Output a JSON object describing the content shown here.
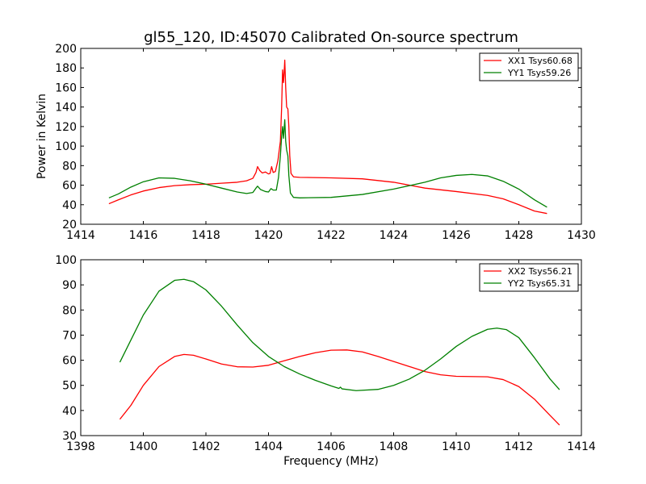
{
  "chart_data": [
    {
      "type": "line",
      "title": "gl55_120, ID:45070 Calibrated On-source spectrum",
      "xlabel": "",
      "ylabel": "Power in Kelvin",
      "xlim": [
        1414,
        1430
      ],
      "ylim": [
        20,
        200
      ],
      "xticks": [
        1414,
        1416,
        1418,
        1420,
        1422,
        1424,
        1426,
        1428,
        1430
      ],
      "yticks": [
        20,
        40,
        60,
        80,
        100,
        120,
        140,
        160,
        180,
        200
      ],
      "legend": "top-right",
      "grid": false,
      "series": [
        {
          "name": "XX1 Tsys60.68",
          "color": "#ff0000",
          "points": [
            [
              1414.9,
              41.0
            ],
            [
              1415.2,
              45.0
            ],
            [
              1415.6,
              50.0
            ],
            [
              1416.0,
              54.0
            ],
            [
              1416.5,
              57.5
            ],
            [
              1417.0,
              59.5
            ],
            [
              1417.5,
              60.5
            ],
            [
              1418.0,
              61.0
            ],
            [
              1418.5,
              62.0
            ],
            [
              1419.0,
              63.0
            ],
            [
              1419.3,
              64.5
            ],
            [
              1419.5,
              67.0
            ],
            [
              1419.6,
              73.0
            ],
            [
              1419.65,
              79.0
            ],
            [
              1419.72,
              75.0
            ],
            [
              1419.8,
              72.5
            ],
            [
              1419.9,
              73.5
            ],
            [
              1420.0,
              71.5
            ],
            [
              1420.05,
              72.0
            ],
            [
              1420.1,
              79.0
            ],
            [
              1420.15,
              73.0
            ],
            [
              1420.22,
              74.0
            ],
            [
              1420.3,
              85.0
            ],
            [
              1420.38,
              105.0
            ],
            [
              1420.42,
              140.0
            ],
            [
              1420.45,
              178.0
            ],
            [
              1420.48,
              165.0
            ],
            [
              1420.5,
              175.0
            ],
            [
              1420.52,
              188.0
            ],
            [
              1420.55,
              160.0
            ],
            [
              1420.58,
              140.0
            ],
            [
              1420.62,
              138.0
            ],
            [
              1420.65,
              120.0
            ],
            [
              1420.68,
              90.0
            ],
            [
              1420.72,
              72.0
            ],
            [
              1420.8,
              68.5
            ],
            [
              1421.0,
              68.0
            ],
            [
              1422.0,
              67.5
            ],
            [
              1423.0,
              66.5
            ],
            [
              1424.0,
              63.0
            ],
            [
              1425.0,
              57.0
            ],
            [
              1426.0,
              53.5
            ],
            [
              1427.0,
              49.5
            ],
            [
              1427.5,
              46.0
            ],
            [
              1428.0,
              40.0
            ],
            [
              1428.5,
              33.5
            ],
            [
              1428.9,
              31.0
            ]
          ]
        },
        {
          "name": "YY1 Tsys59.26",
          "color": "#008000",
          "points": [
            [
              1414.9,
              47.0
            ],
            [
              1415.2,
              51.0
            ],
            [
              1415.6,
              58.0
            ],
            [
              1416.0,
              63.5
            ],
            [
              1416.5,
              67.5
            ],
            [
              1417.0,
              67.0
            ],
            [
              1417.5,
              64.5
            ],
            [
              1418.0,
              61.0
            ],
            [
              1418.5,
              57.0
            ],
            [
              1419.0,
              53.0
            ],
            [
              1419.3,
              51.5
            ],
            [
              1419.5,
              52.5
            ],
            [
              1419.6,
              57.0
            ],
            [
              1419.65,
              59.0
            ],
            [
              1419.75,
              55.5
            ],
            [
              1419.9,
              53.5
            ],
            [
              1420.0,
              53.0
            ],
            [
              1420.08,
              56.5
            ],
            [
              1420.15,
              55.0
            ],
            [
              1420.25,
              55.0
            ],
            [
              1420.32,
              68.0
            ],
            [
              1420.38,
              90.0
            ],
            [
              1420.42,
              110.0
            ],
            [
              1420.45,
              120.0
            ],
            [
              1420.48,
              108.0
            ],
            [
              1420.52,
              127.0
            ],
            [
              1420.55,
              105.0
            ],
            [
              1420.58,
              96.0
            ],
            [
              1420.62,
              90.0
            ],
            [
              1420.65,
              70.0
            ],
            [
              1420.7,
              52.0
            ],
            [
              1420.8,
              47.5
            ],
            [
              1421.0,
              47.0
            ],
            [
              1422.0,
              47.5
            ],
            [
              1423.0,
              50.5
            ],
            [
              1424.0,
              56.0
            ],
            [
              1425.0,
              63.0
            ],
            [
              1425.5,
              67.5
            ],
            [
              1426.0,
              70.0
            ],
            [
              1426.5,
              71.0
            ],
            [
              1427.0,
              69.5
            ],
            [
              1427.5,
              64.0
            ],
            [
              1428.0,
              56.0
            ],
            [
              1428.5,
              45.0
            ],
            [
              1428.9,
              37.5
            ]
          ]
        }
      ]
    },
    {
      "type": "line",
      "title": "",
      "xlabel": "Frequency (MHz)",
      "ylabel": "",
      "xlim": [
        1398,
        1414
      ],
      "ylim": [
        30,
        100
      ],
      "xticks": [
        1398,
        1400,
        1402,
        1404,
        1406,
        1408,
        1410,
        1412,
        1414
      ],
      "yticks": [
        30,
        40,
        50,
        60,
        70,
        80,
        90,
        100
      ],
      "legend": "top-right",
      "grid": false,
      "series": [
        {
          "name": "XX2 Tsys56.21",
          "color": "#ff0000",
          "points": [
            [
              1399.25,
              36.5
            ],
            [
              1399.6,
              42.0
            ],
            [
              1400.0,
              50.0
            ],
            [
              1400.5,
              57.5
            ],
            [
              1401.0,
              61.5
            ],
            [
              1401.3,
              62.3
            ],
            [
              1401.6,
              62.0
            ],
            [
              1402.0,
              60.5
            ],
            [
              1402.5,
              58.5
            ],
            [
              1403.0,
              57.4
            ],
            [
              1403.5,
              57.3
            ],
            [
              1404.0,
              58.0
            ],
            [
              1404.5,
              59.8
            ],
            [
              1405.0,
              61.5
            ],
            [
              1405.5,
              63.0
            ],
            [
              1406.0,
              64.0
            ],
            [
              1406.5,
              64.1
            ],
            [
              1407.0,
              63.3
            ],
            [
              1407.5,
              61.5
            ],
            [
              1408.0,
              59.5
            ],
            [
              1408.5,
              57.5
            ],
            [
              1409.0,
              55.5
            ],
            [
              1409.5,
              54.2
            ],
            [
              1410.0,
              53.6
            ],
            [
              1411.0,
              53.4
            ],
            [
              1411.5,
              52.3
            ],
            [
              1412.0,
              49.5
            ],
            [
              1412.5,
              44.5
            ],
            [
              1413.0,
              38.0
            ],
            [
              1413.3,
              34.2
            ]
          ]
        },
        {
          "name": "YY2 Tsys65.31",
          "color": "#008000",
          "points": [
            [
              1399.25,
              59.2
            ],
            [
              1399.6,
              68.0
            ],
            [
              1400.0,
              78.0
            ],
            [
              1400.5,
              87.5
            ],
            [
              1401.0,
              91.8
            ],
            [
              1401.3,
              92.2
            ],
            [
              1401.6,
              91.3
            ],
            [
              1402.0,
              88.0
            ],
            [
              1402.5,
              81.5
            ],
            [
              1403.0,
              74.0
            ],
            [
              1403.5,
              67.0
            ],
            [
              1404.0,
              61.5
            ],
            [
              1404.5,
              57.5
            ],
            [
              1405.0,
              54.5
            ],
            [
              1405.5,
              52.0
            ],
            [
              1406.0,
              49.8
            ],
            [
              1406.25,
              48.8
            ],
            [
              1406.3,
              49.3
            ],
            [
              1406.35,
              48.6
            ],
            [
              1406.8,
              47.9
            ],
            [
              1407.5,
              48.4
            ],
            [
              1408.0,
              50.0
            ],
            [
              1408.5,
              52.5
            ],
            [
              1409.0,
              56.0
            ],
            [
              1409.5,
              60.5
            ],
            [
              1410.0,
              65.5
            ],
            [
              1410.5,
              69.5
            ],
            [
              1411.0,
              72.3
            ],
            [
              1411.3,
              72.8
            ],
            [
              1411.6,
              72.2
            ],
            [
              1412.0,
              69.0
            ],
            [
              1412.5,
              61.0
            ],
            [
              1413.0,
              52.5
            ],
            [
              1413.3,
              48.3
            ]
          ]
        }
      ]
    }
  ]
}
